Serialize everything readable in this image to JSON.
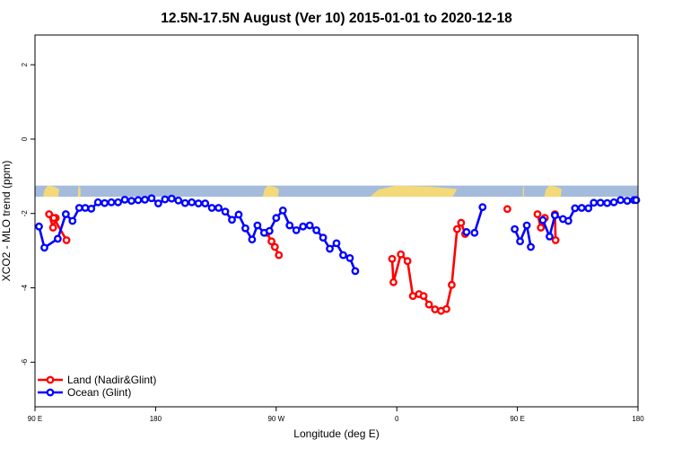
{
  "chart_data": {
    "type": "line",
    "title": "12.5N-17.5N August (Ver 10)   2015-01-01 to 2020-12-18",
    "xlabel": "Longitude (deg E)",
    "ylabel": "XCO2 - MLO trend (ppm)",
    "xlim": [
      90,
      540
    ],
    "ylim": [
      -7.2,
      2.8
    ],
    "xticks": [
      {
        "value": 90,
        "label": "90 E"
      },
      {
        "value": 180,
        "label": "180"
      },
      {
        "value": 270,
        "label": "90 W"
      },
      {
        "value": 360,
        "label": "0"
      },
      {
        "value": 450,
        "label": "90 E"
      },
      {
        "value": 540,
        "label": "180"
      }
    ],
    "yticks": [
      {
        "value": 2,
        "label": "2"
      },
      {
        "value": 0,
        "label": "0"
      },
      {
        "value": -2,
        "label": "-2"
      },
      {
        "value": -4,
        "label": "-4"
      },
      {
        "value": -6,
        "label": "-6"
      }
    ],
    "map_strip": {
      "y_range": [
        -1.55,
        -1.25
      ],
      "ocean_color": "#a4bbdc",
      "land_color": "#f3d97a",
      "land_segments": [
        [
          96,
          108
        ],
        [
          122,
          124
        ],
        [
          260,
          272
        ],
        [
          340,
          405
        ],
        [
          454,
          455
        ],
        [
          470,
          483
        ]
      ]
    },
    "series": [
      {
        "name": "Land (Nadir&Glint)",
        "color": "#ff0000",
        "segments": [
          [
            [
              100.5,
              -2.02
            ],
            [
              103.5,
              -2.38
            ],
            [
              105.5,
              -2.12
            ]
          ],
          [
            [
              104,
              -2.12
            ],
            [
              113.5,
              -2.72
            ]
          ],
          [
            [
              263,
              -2.52
            ],
            [
              266.5,
              -2.75
            ],
            [
              269,
              -2.9
            ],
            [
              272,
              -3.12
            ]
          ],
          [
            [
              356.5,
              -3.22
            ],
            [
              357.5,
              -3.85
            ],
            [
              363,
              -3.1
            ],
            [
              368,
              -3.28
            ],
            [
              372,
              -4.22
            ],
            [
              376.5,
              -4.17
            ],
            [
              380,
              -4.22
            ],
            [
              384,
              -4.45
            ],
            [
              388.5,
              -4.58
            ],
            [
              393,
              -4.62
            ],
            [
              397,
              -4.57
            ],
            [
              401,
              -3.92
            ],
            [
              405,
              -2.42
            ],
            [
              408,
              -2.25
            ],
            [
              411,
              -2.55
            ]
          ],
          [
            [
              442.5,
              -1.88
            ]
          ],
          [
            [
              465,
              -2.02
            ],
            [
              467.5,
              -2.38
            ],
            [
              470.5,
              -2.12
            ]
          ],
          [
            [
              478,
              -2.02
            ],
            [
              478.5,
              -2.72
            ]
          ]
        ]
      },
      {
        "name": "Ocean (Glint)",
        "color": "#0000ff",
        "segments": [
          [
            [
              93,
              -2.35
            ],
            [
              97,
              -2.92
            ],
            [
              107,
              -2.68
            ],
            [
              113,
              -2.02
            ],
            [
              118,
              -2.2
            ],
            [
              123,
              -1.85
            ],
            [
              127.5,
              -1.85
            ],
            [
              132,
              -1.87
            ],
            [
              137,
              -1.7
            ],
            [
              142,
              -1.72
            ],
            [
              147,
              -1.7
            ],
            [
              152,
              -1.7
            ],
            [
              157,
              -1.63
            ],
            [
              162,
              -1.66
            ],
            [
              167,
              -1.64
            ],
            [
              172,
              -1.63
            ],
            [
              177,
              -1.59
            ],
            [
              182,
              -1.73
            ],
            [
              187,
              -1.62
            ],
            [
              192,
              -1.6
            ],
            [
              197,
              -1.65
            ],
            [
              202,
              -1.72
            ],
            [
              207,
              -1.7
            ],
            [
              212,
              -1.73
            ],
            [
              217,
              -1.73
            ],
            [
              222,
              -1.85
            ],
            [
              227,
              -1.85
            ],
            [
              232,
              -1.95
            ],
            [
              237,
              -2.17
            ],
            [
              242,
              -2.03
            ],
            [
              247,
              -2.4
            ],
            [
              252,
              -2.7
            ],
            [
              256,
              -2.32
            ],
            [
              261,
              -2.52
            ],
            [
              265,
              -2.47
            ],
            [
              270,
              -2.12
            ],
            [
              275,
              -1.92
            ],
            [
              280,
              -2.32
            ],
            [
              285,
              -2.45
            ],
            [
              290,
              -2.35
            ],
            [
              295,
              -2.32
            ],
            [
              300,
              -2.45
            ],
            [
              305,
              -2.65
            ],
            [
              310,
              -2.95
            ],
            [
              315,
              -2.8
            ],
            [
              320,
              -3.12
            ],
            [
              325,
              -3.2
            ],
            [
              329,
              -3.55
            ]
          ],
          [
            [
              412,
              -2.5
            ]
          ],
          [
            [
              418,
              -2.52
            ],
            [
              424,
              -1.83
            ]
          ],
          [
            [
              448,
              -2.42
            ],
            [
              452,
              -2.75
            ],
            [
              457,
              -2.32
            ],
            [
              460,
              -2.9
            ]
          ],
          [
            [
              469,
              -2.18
            ],
            [
              474,
              -2.62
            ],
            [
              478,
              -2.05
            ],
            [
              484,
              -2.15
            ],
            [
              488,
              -2.2
            ],
            [
              493,
              -1.86
            ],
            [
              498,
              -1.85
            ],
            [
              503,
              -1.86
            ],
            [
              507,
              -1.71
            ],
            [
              512,
              -1.71
            ],
            [
              517,
              -1.72
            ],
            [
              522,
              -1.7
            ],
            [
              527,
              -1.64
            ],
            [
              532,
              -1.66
            ],
            [
              537,
              -1.64
            ],
            [
              541,
              -1.64
            ]
          ]
        ]
      }
    ],
    "legend": {
      "placement": "bottom-left",
      "entries": [
        "Land (Nadir&Glint)",
        "Ocean (Glint)"
      ]
    },
    "grid": false
  }
}
